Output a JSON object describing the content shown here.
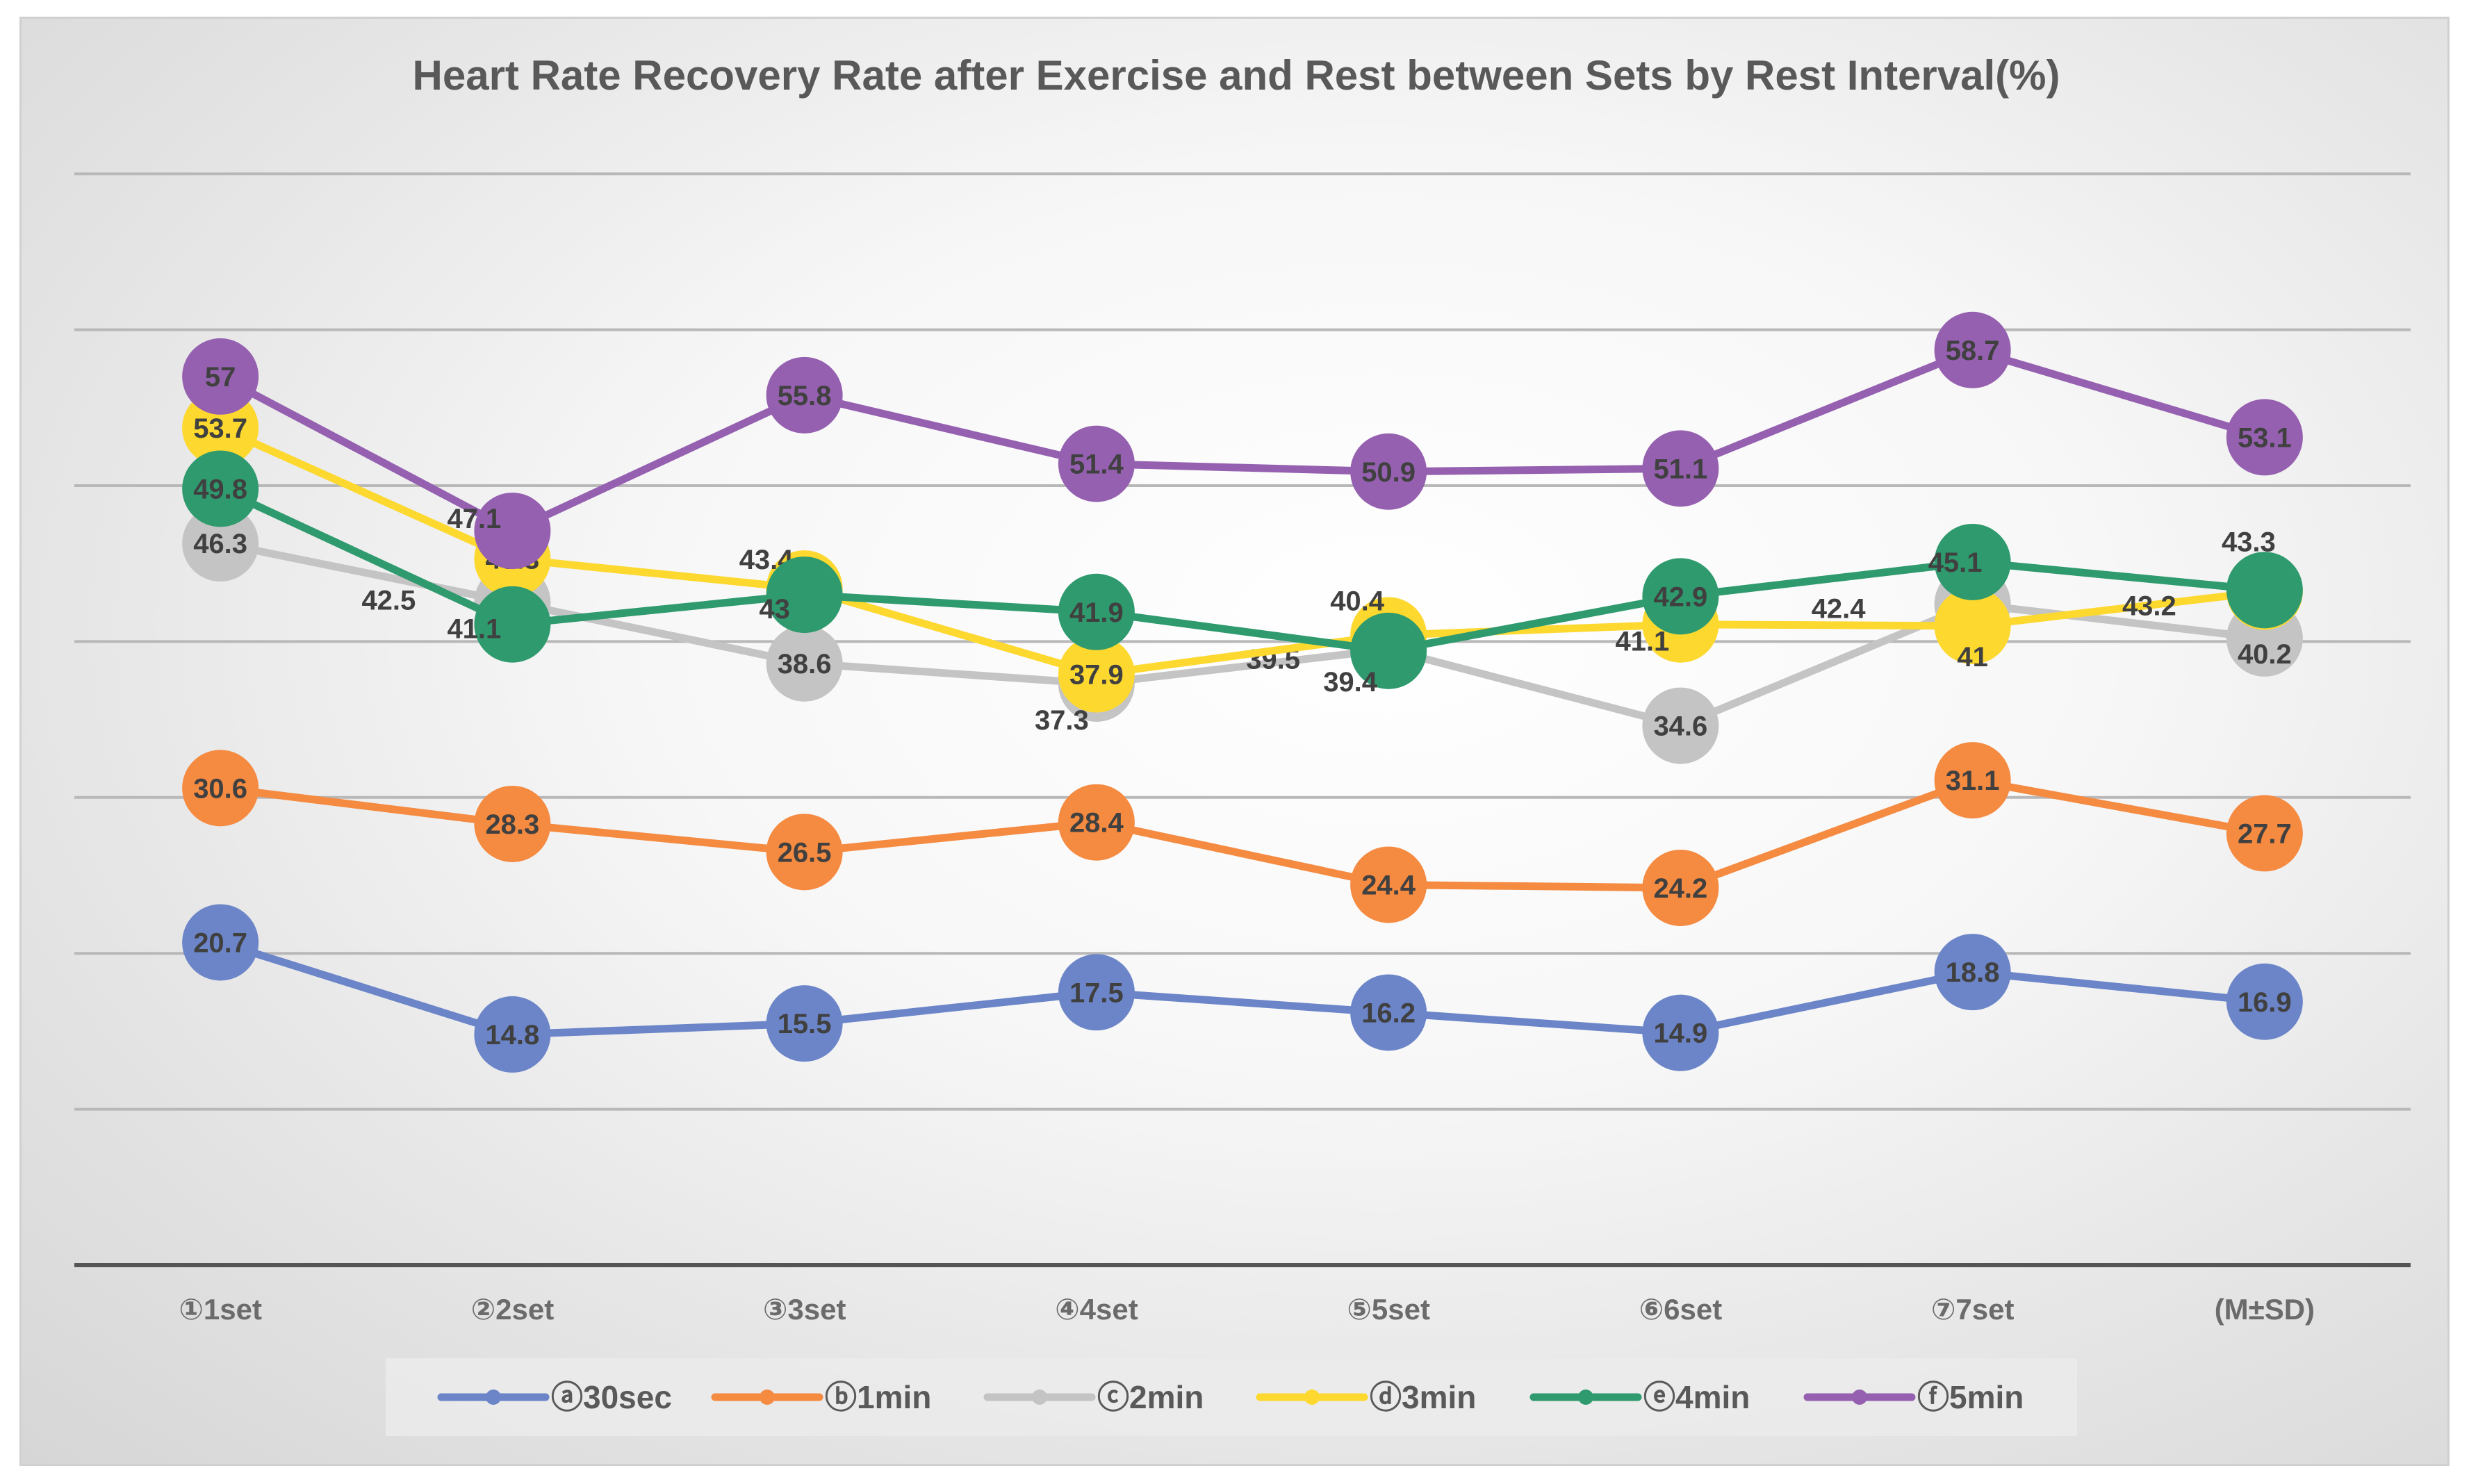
{
  "chart_data": {
    "type": "line",
    "title": "Heart Rate Recovery Rate after Exercise and Rest between Sets by Rest Interval(%)",
    "xlabel": "",
    "ylabel": "",
    "ylim": [
      0,
      70
    ],
    "grid": true,
    "legend_position": "bottom",
    "categories": [
      "①1set",
      "②2set",
      "③3set",
      "④4set",
      "⑤5set",
      "⑥6set",
      "⑦7set",
      "(M±SD)"
    ],
    "series": [
      {
        "name": "ⓐ30sec",
        "color": "#6B85C8",
        "values": [
          20.7,
          14.8,
          15.5,
          17.5,
          16.2,
          14.9,
          18.8,
          16.9
        ]
      },
      {
        "name": "ⓑ1min",
        "color": "#F58A41",
        "values": [
          30.6,
          28.3,
          26.5,
          28.4,
          24.4,
          24.2,
          31.1,
          27.7
        ]
      },
      {
        "name": "ⓒ2min",
        "color": "#C4C4C4",
        "values": [
          46.3,
          42.5,
          38.6,
          37.3,
          39.5,
          34.6,
          42.4,
          40.2
        ]
      },
      {
        "name": "ⓓ3min",
        "color": "#FDD82E",
        "values": [
          53.7,
          45.3,
          43.4,
          37.9,
          40.4,
          41.1,
          41,
          43.2
        ]
      },
      {
        "name": "ⓔ4min",
        "color": "#2E9A6E",
        "values": [
          49.8,
          41.1,
          43,
          41.9,
          39.4,
          42.9,
          45.1,
          43.3
        ]
      },
      {
        "name": "ⓕ5min",
        "color": "#9560B0",
        "values": [
          57,
          47.1,
          55.8,
          51.4,
          50.9,
          51.1,
          58.7,
          53.1
        ]
      }
    ]
  }
}
